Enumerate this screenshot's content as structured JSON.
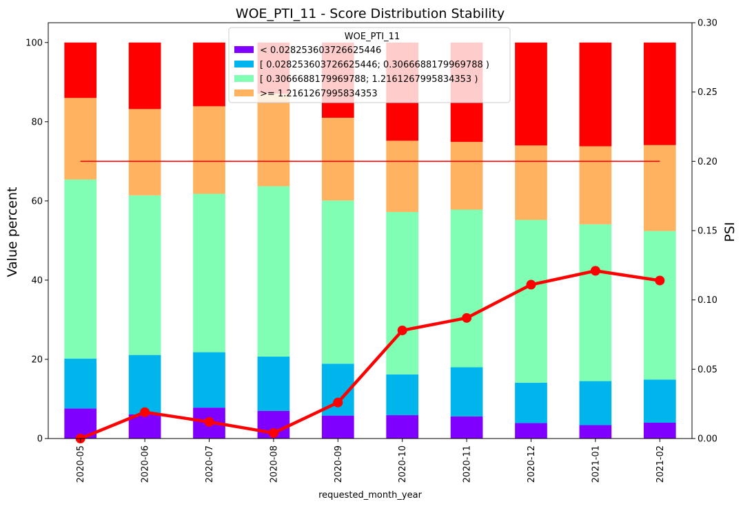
{
  "chart_data": {
    "type": "bar",
    "stacked": true,
    "title": "WOE_PTI_11  - Score Distribution Stability",
    "xlabel": "requested_month_year",
    "ylabel": "Value percent",
    "y2label": "PSI",
    "categories": [
      "2020-05",
      "2020-06",
      "2020-07",
      "2020-08",
      "2020-09",
      "2020-10",
      "2020-11",
      "2020-12",
      "2021-01",
      "2021-02"
    ],
    "ylim": [
      0,
      105
    ],
    "y2lim": [
      0,
      0.3
    ],
    "yticks": [
      0,
      20,
      40,
      60,
      80,
      100
    ],
    "y2ticks": [
      "0.00",
      "0.05",
      "0.10",
      "0.15",
      "0.20",
      "0.25",
      "0.30"
    ],
    "legend": {
      "title": "WOE_PTI_11",
      "placement": "upper-center",
      "entries": [
        "< 0.028253603726625446",
        "[ 0.028253603726625446; 0.3066688179969788 )",
        "[ 0.3066688179969788; 1.2161267995834353 )",
        ">= 1.2161267995834353"
      ]
    },
    "series": [
      {
        "name": "< 0.028253603726625446",
        "color": "#8000ff",
        "values": [
          7.6,
          6.1,
          7.8,
          7.0,
          5.8,
          5.9,
          5.6,
          3.9,
          3.4,
          4.0
        ]
      },
      {
        "name": "[ 0.028253603726625446; 0.3066688179969788 )",
        "color": "#00b5eb",
        "values": [
          12.6,
          15.0,
          14.0,
          13.7,
          13.1,
          10.3,
          12.4,
          10.2,
          11.1,
          10.9
        ]
      },
      {
        "name": "[ 0.3066688179969788; 1.2161267995834353 )",
        "color": "#80ffb4",
        "values": [
          45.2,
          40.3,
          40.0,
          43.0,
          41.2,
          41.0,
          39.8,
          41.1,
          39.6,
          37.5
        ]
      },
      {
        "name": ">= 1.2161267995834353",
        "color": "#ffb360",
        "values": [
          20.6,
          21.8,
          22.1,
          23.4,
          20.9,
          18.0,
          17.1,
          18.8,
          19.7,
          21.7
        ]
      },
      {
        "color": "#ff0000",
        "values": [
          14.0,
          16.8,
          16.1,
          12.9,
          19.0,
          24.8,
          25.1,
          26.0,
          26.2,
          25.9
        ]
      }
    ],
    "psi": {
      "color": "#ff0000",
      "values": [
        0.0,
        0.019,
        0.012,
        0.004,
        0.026,
        0.078,
        0.087,
        0.111,
        0.121,
        0.114
      ]
    },
    "threshold": {
      "color": "#ff0000",
      "value": 0.2
    },
    "grid": false
  }
}
